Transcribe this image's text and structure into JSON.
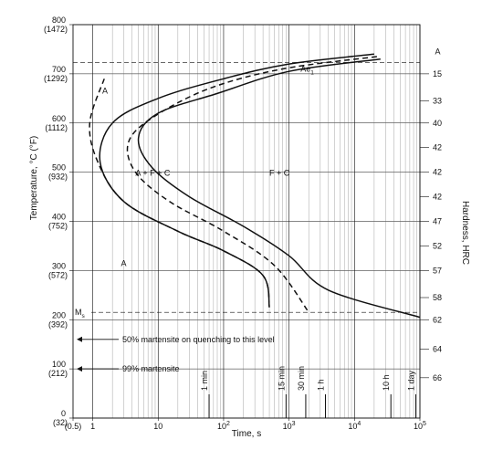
{
  "chart_data": {
    "type": "line",
    "title": "",
    "xlabel": "Time, s",
    "ylabel": "Temperature, °C (°F)",
    "y2label": "Hardness, HRC",
    "x_scale": "log",
    "xlim": [
      0.5,
      100000
    ],
    "ylim": [
      0,
      800
    ],
    "grid": true,
    "x_ticks": [
      {
        "value": 0.5,
        "label": "(0.5)"
      },
      {
        "value": 1,
        "label": "1"
      },
      {
        "value": 10,
        "label": "10"
      },
      {
        "value": 100,
        "label": "10",
        "exp": "2"
      },
      {
        "value": 1000,
        "label": "10",
        "exp": "3"
      },
      {
        "value": 10000,
        "label": "10",
        "exp": "4"
      },
      {
        "value": 100000,
        "label": "10",
        "exp": "5"
      }
    ],
    "y_ticks": [
      {
        "value": 0,
        "c": "0",
        "f": "(32)"
      },
      {
        "value": 100,
        "c": "100",
        "f": "(212)"
      },
      {
        "value": 200,
        "c": "200",
        "f": "(392)"
      },
      {
        "value": 300,
        "c": "300",
        "f": "(572)"
      },
      {
        "value": 400,
        "c": "400",
        "f": "(752)"
      },
      {
        "value": 500,
        "c": "500",
        "f": "(932)"
      },
      {
        "value": 600,
        "c": "600",
        "f": "(1112)"
      },
      {
        "value": 700,
        "c": "700",
        "f": "(1292)"
      },
      {
        "value": 800,
        "c": "800",
        "f": "(1472)"
      }
    ],
    "hardness_ticks": [
      {
        "y": 700,
        "label": "15"
      },
      {
        "y": 645,
        "label": "33"
      },
      {
        "y": 600,
        "label": "40"
      },
      {
        "y": 550,
        "label": "42"
      },
      {
        "y": 500,
        "label": "42"
      },
      {
        "y": 450,
        "label": "42"
      },
      {
        "y": 400,
        "label": "47"
      },
      {
        "y": 350,
        "label": "52"
      },
      {
        "y": 300,
        "label": "57"
      },
      {
        "y": 245,
        "label": "58"
      },
      {
        "y": 200,
        "label": "62"
      },
      {
        "y": 140,
        "label": "64"
      },
      {
        "y": 82,
        "label": "66"
      }
    ],
    "time_markers": [
      {
        "x": 60,
        "label": "1 min"
      },
      {
        "x": 900,
        "label": "15 min"
      },
      {
        "x": 1800,
        "label": "30 min"
      },
      {
        "x": 3600,
        "label": "1 h"
      },
      {
        "x": 36000,
        "label": "10 h"
      },
      {
        "x": 86400,
        "label": "1 day"
      }
    ],
    "ae1": {
      "temp": 723,
      "label": "Ae",
      "sub": "1"
    },
    "ms": {
      "temp": 215,
      "label": "M",
      "sub": "s"
    },
    "series": [
      {
        "style": "dashed",
        "points": [
          [
            1.5,
            690
          ],
          [
            0.9,
            600
          ],
          [
            1.2,
            520
          ],
          [
            3,
            440
          ],
          [
            20,
            380
          ],
          [
            100,
            340
          ],
          [
            400,
            290
          ],
          [
            500,
            225
          ]
        ]
      },
      {
        "style": "solid",
        "points": [
          [
            20000,
            740
          ],
          [
            1000,
            720
          ],
          [
            100,
            690
          ],
          [
            10,
            650
          ],
          [
            2,
            600
          ],
          [
            1.3,
            520
          ],
          [
            3,
            440
          ],
          [
            20,
            380
          ],
          [
            100,
            340
          ],
          [
            400,
            290
          ],
          [
            500,
            225
          ]
        ]
      },
      {
        "style": "dashed",
        "points": [
          [
            22000,
            735
          ],
          [
            800,
            710
          ],
          [
            60,
            670
          ],
          [
            8,
            610
          ],
          [
            3.5,
            560
          ],
          [
            4.5,
            500
          ],
          [
            15,
            440
          ],
          [
            100,
            380
          ],
          [
            600,
            310
          ],
          [
            2000,
            215
          ]
        ]
      },
      {
        "style": "solid",
        "points": [
          [
            25000,
            730
          ],
          [
            1000,
            705
          ],
          [
            80,
            660
          ],
          [
            10,
            620
          ],
          [
            5,
            570
          ],
          [
            8,
            510
          ],
          [
            30,
            450
          ],
          [
            200,
            390
          ],
          [
            1000,
            330
          ],
          [
            4000,
            260
          ],
          [
            100000,
            205
          ]
        ]
      }
    ],
    "region_labels": [
      {
        "x": 170000,
        "y": 745,
        "text": "A"
      },
      {
        "x": 1.4,
        "y": 665,
        "text": "A"
      },
      {
        "x": 4.5,
        "y": 498,
        "text": "A + F + C"
      },
      {
        "x": 500,
        "y": 498,
        "text": "F + C"
      },
      {
        "x": 2.7,
        "y": 315,
        "text": "A"
      }
    ],
    "annotations": [
      {
        "y": 160,
        "text": "50% martensite on quenching to this level"
      },
      {
        "y": 100,
        "text": "99% martensite"
      }
    ]
  }
}
